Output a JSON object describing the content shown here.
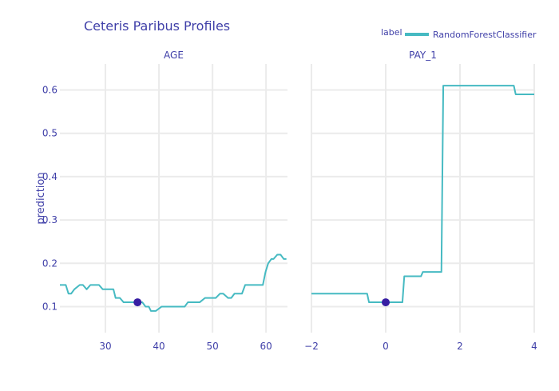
{
  "chart_data": {
    "type": "line",
    "title": "Ceteris Paribus Profiles",
    "ylabel": "prediction",
    "legend": {
      "title": "label",
      "entries": [
        "RandomForestClassifier"
      ],
      "position": "top-right"
    },
    "line_color": "#46bac2",
    "point_color": "#371ea3",
    "grid": true,
    "ylim": [
      0.04,
      0.66
    ],
    "yticks": [
      0.1,
      0.2,
      0.3,
      0.4,
      0.5,
      0.6
    ],
    "ytick_labels": [
      "0.1",
      "0.2",
      "0.3",
      "0.4",
      "0.5",
      "0.6"
    ],
    "panels": [
      {
        "facet_label": "AGE",
        "xlim": [
          21.5,
          64
        ],
        "xticks": [
          30,
          40,
          50,
          60
        ],
        "xtick_labels": [
          "30",
          "40",
          "50",
          "60"
        ],
        "series": [
          {
            "name": "RandomForestClassifier",
            "x": [
              21.5,
              22.6,
              23.1,
              23.6,
              24.2,
              25.2,
              25.8,
              26.5,
              27.2,
              28.3,
              28.8,
              29.5,
              30.5,
              31.5,
              31.9,
              32.7,
              33.4,
              34.5,
              35.6,
              36.3,
              36.9,
              37.5,
              38.1,
              38.5,
              39.4,
              40.5,
              41.2,
              42.2,
              43.5,
              44.8,
              45.4,
              46.4,
              47.6,
              48.6,
              49.7,
              50.6,
              51.4,
              52.0,
              52.9,
              53.5,
              54.1,
              54.7,
              55.5,
              56.1,
              57.2,
              58.6,
              59.4,
              59.9,
              60.4,
              61.0,
              61.4,
              62.1,
              62.7,
              63.3,
              63.8
            ],
            "y": [
              0.15,
              0.15,
              0.13,
              0.13,
              0.14,
              0.15,
              0.15,
              0.14,
              0.15,
              0.15,
              0.15,
              0.14,
              0.14,
              0.14,
              0.12,
              0.12,
              0.11,
              0.11,
              0.11,
              0.11,
              0.11,
              0.1,
              0.1,
              0.09,
              0.09,
              0.1,
              0.1,
              0.1,
              0.1,
              0.1,
              0.11,
              0.11,
              0.11,
              0.12,
              0.12,
              0.12,
              0.13,
              0.13,
              0.12,
              0.12,
              0.13,
              0.13,
              0.13,
              0.15,
              0.15,
              0.15,
              0.15,
              0.18,
              0.2,
              0.21,
              0.21,
              0.22,
              0.22,
              0.21,
              0.21
            ]
          }
        ],
        "observation": {
          "x": 36,
          "y": 0.11
        }
      },
      {
        "facet_label": "PAY_1",
        "xlim": [
          -2,
          4
        ],
        "xticks": [
          -2,
          0,
          2,
          4
        ],
        "xtick_labels": [
          "−2",
          "0",
          "2",
          "4"
        ],
        "series": [
          {
            "name": "RandomForestClassifier",
            "x": [
              -2,
              -0.5,
              -0.45,
              0.45,
              0.5,
              0.95,
              1.0,
              1.5,
              1.55,
              3.45,
              3.5,
              4
            ],
            "y": [
              0.13,
              0.13,
              0.11,
              0.11,
              0.17,
              0.17,
              0.18,
              0.18,
              0.61,
              0.61,
              0.59,
              0.59
            ]
          }
        ],
        "observation": {
          "x": 0,
          "y": 0.11
        }
      }
    ]
  }
}
